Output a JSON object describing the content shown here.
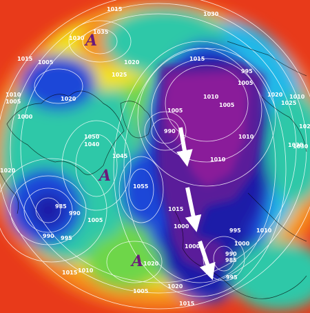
{
  "map": {
    "pressure_labels": [
      {
        "id": "p1",
        "text": "1015"
      },
      {
        "id": "p2",
        "text": "1030"
      },
      {
        "id": "p3",
        "text": "1035"
      },
      {
        "id": "p4",
        "text": "1030"
      },
      {
        "id": "p5",
        "text": "1015"
      },
      {
        "id": "p6",
        "text": "1005"
      },
      {
        "id": "p7",
        "text": "1025"
      },
      {
        "id": "p8",
        "text": "1020"
      },
      {
        "id": "p9",
        "text": "1015"
      },
      {
        "id": "p10",
        "text": "1010"
      },
      {
        "id": "p11",
        "text": "1005"
      },
      {
        "id": "p12",
        "text": "1000"
      },
      {
        "id": "p13",
        "text": "1020"
      },
      {
        "id": "p14",
        "text": "1010"
      },
      {
        "id": "p15",
        "text": "1020"
      },
      {
        "id": "p16",
        "text": "995"
      },
      {
        "id": "p17",
        "text": "1005"
      },
      {
        "id": "p18",
        "text": "1010"
      },
      {
        "id": "p19",
        "text": "1005"
      },
      {
        "id": "p20",
        "text": "1005"
      },
      {
        "id": "p21",
        "text": "1010"
      },
      {
        "id": "p22",
        "text": "1020"
      },
      {
        "id": "p23",
        "text": "1025"
      },
      {
        "id": "p24",
        "text": "1030"
      },
      {
        "id": "p25",
        "text": "990"
      },
      {
        "id": "p26",
        "text": "1050"
      },
      {
        "id": "p27",
        "text": "1045"
      },
      {
        "id": "p28",
        "text": "1040"
      },
      {
        "id": "p29",
        "text": "1055"
      },
      {
        "id": "p30",
        "text": "1010"
      },
      {
        "id": "p31",
        "text": "1015"
      },
      {
        "id": "p32",
        "text": "1000"
      },
      {
        "id": "p33",
        "text": "985"
      },
      {
        "id": "p34",
        "text": "990"
      },
      {
        "id": "p35",
        "text": "1005"
      },
      {
        "id": "p36",
        "text": "990"
      },
      {
        "id": "p37",
        "text": "995"
      },
      {
        "id": "p38",
        "text": "1000"
      },
      {
        "id": "p39",
        "text": "995"
      },
      {
        "id": "p40",
        "text": "1000"
      },
      {
        "id": "p41",
        "text": "1010"
      },
      {
        "id": "p42",
        "text": "990"
      },
      {
        "id": "p43",
        "text": "985"
      },
      {
        "id": "p44",
        "text": "995"
      },
      {
        "id": "p45",
        "text": "1020"
      },
      {
        "id": "p46",
        "text": "1015"
      },
      {
        "id": "p47",
        "text": "1010"
      },
      {
        "id": "p48",
        "text": "1005"
      },
      {
        "id": "p49",
        "text": "1020"
      },
      {
        "id": "p50",
        "text": "1030"
      },
      {
        "id": "p51",
        "text": "1020"
      },
      {
        "id": "p52",
        "text": "1015"
      }
    ],
    "high_markers": [
      {
        "id": "h1",
        "text": "A"
      },
      {
        "id": "h2",
        "text": "A"
      },
      {
        "id": "h3",
        "text": "A"
      }
    ],
    "colors": {
      "outer_red": "#e83a1a",
      "orange": "#f58a1a",
      "yellow": "#f2e21c",
      "green": "#6ed64a",
      "teal": "#2ec8a8",
      "cyan": "#22b8e8",
      "blue": "#1e46d8",
      "deep_blue": "#1a1aa8",
      "purple": "#5a1a9a",
      "magenta": "#8a1a9a",
      "contour": "#ffffff",
      "coast": "#000000"
    },
    "arrows": [
      "arrow-down",
      "arrow-down",
      "arrow-down-right"
    ]
  }
}
